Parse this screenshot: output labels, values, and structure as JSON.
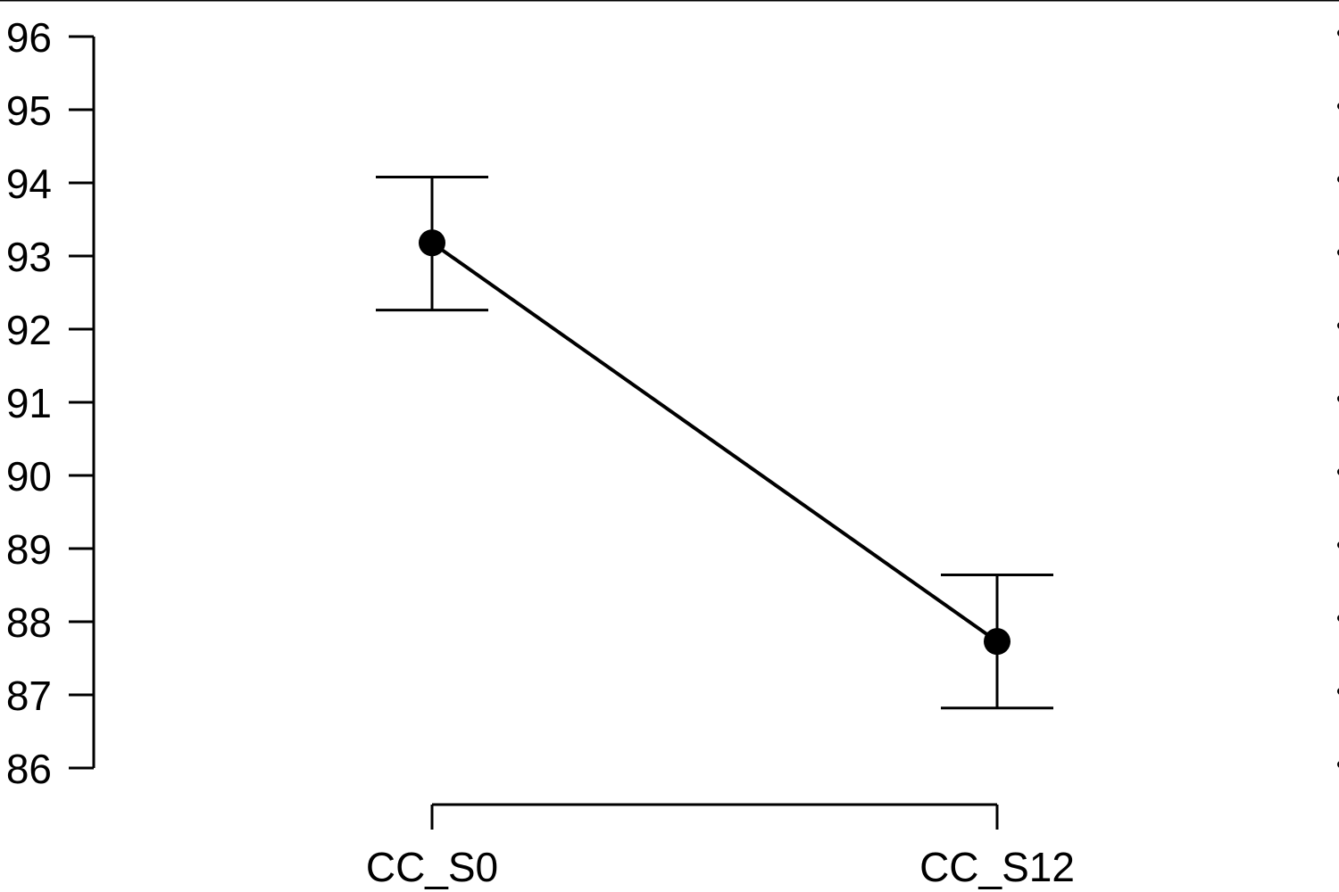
{
  "chart_data": {
    "type": "line",
    "title": "",
    "xlabel": "",
    "ylabel": "",
    "categories": [
      "CC_S0",
      "CC_S12"
    ],
    "series": [
      {
        "values": [
          93.18,
          87.73
        ],
        "error_low": [
          92.26,
          86.82
        ],
        "error_high": [
          94.08,
          88.64
        ]
      }
    ],
    "ylim": [
      86,
      96
    ],
    "yticks": [
      96,
      95,
      94,
      93,
      92,
      91,
      90,
      89,
      88,
      87,
      86
    ],
    "grid": false,
    "legend": "none",
    "color": "#000000"
  }
}
